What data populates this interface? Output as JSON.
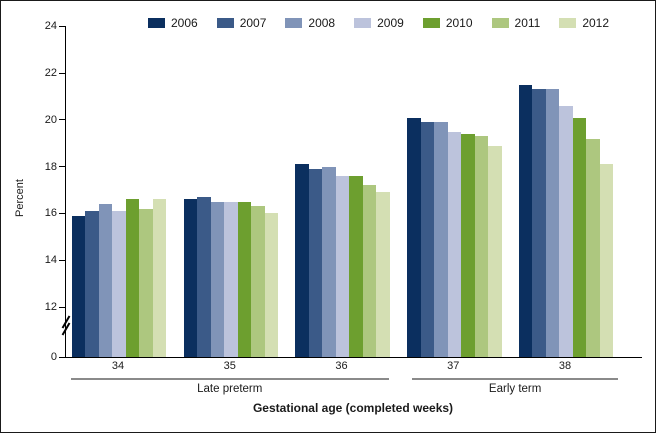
{
  "chart_data": {
    "type": "bar",
    "title": "",
    "categories": [
      "34",
      "35",
      "36",
      "37",
      "38"
    ],
    "series": [
      {
        "name": "2006",
        "color": "#0b2f5f",
        "values": [
          15.9,
          16.6,
          18.1,
          20.1,
          21.5
        ]
      },
      {
        "name": "2007",
        "color": "#3b5a88",
        "values": [
          16.1,
          16.7,
          17.9,
          19.9,
          21.3
        ]
      },
      {
        "name": "2008",
        "color": "#8094b8",
        "values": [
          16.4,
          16.5,
          18.0,
          19.9,
          21.3
        ]
      },
      {
        "name": "2009",
        "color": "#bcc3dc",
        "values": [
          16.1,
          16.5,
          17.6,
          19.5,
          20.6
        ]
      },
      {
        "name": "2010",
        "color": "#6d9f2f",
        "values": [
          16.6,
          16.5,
          17.6,
          19.4,
          20.1
        ]
      },
      {
        "name": "2011",
        "color": "#adc77f",
        "values": [
          16.2,
          16.3,
          17.2,
          19.3,
          19.2
        ]
      },
      {
        "name": "2012",
        "color": "#d4dfb3",
        "values": [
          16.6,
          16.0,
          16.9,
          18.9,
          18.1
        ]
      }
    ],
    "ylabel": "Percent",
    "xlabel": "Gestational age (completed weeks)",
    "y_ticks": [
      0,
      12,
      14,
      16,
      18,
      20,
      22,
      24
    ],
    "ylim": [
      12,
      24
    ],
    "axis_break_between": [
      0,
      12
    ],
    "grid": false,
    "legend_position": "top",
    "group_brackets": [
      {
        "label": "Late preterm",
        "from": "34",
        "to": "36"
      },
      {
        "label": "Early term",
        "from": "37",
        "to": "38"
      }
    ]
  }
}
